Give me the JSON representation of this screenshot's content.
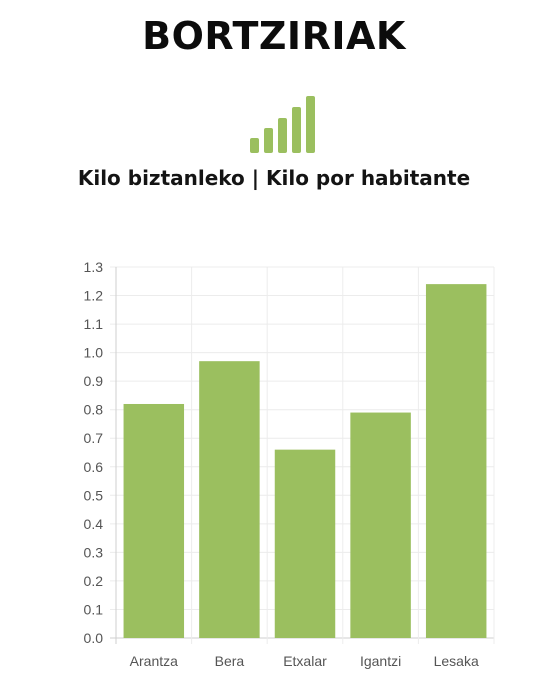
{
  "header": {
    "title": "BORTZIRIAK",
    "subtitle": "Kilo biztanleko | Kilo por habitante",
    "icon": "signal-bars-icon"
  },
  "chart_data": {
    "type": "bar",
    "categories": [
      "Arantza",
      "Bera",
      "Etxalar",
      "Igantzi",
      "Lesaka"
    ],
    "values": [
      0.82,
      0.97,
      0.66,
      0.79,
      1.24
    ],
    "ylim": [
      0,
      1.3
    ],
    "yticks": [
      "0.0",
      "0.1",
      "0.2",
      "0.3",
      "0.4",
      "0.5",
      "0.6",
      "0.7",
      "0.8",
      "0.9",
      "1.0",
      "1.1",
      "1.2",
      "1.3"
    ],
    "xlabel": "",
    "ylabel": "",
    "grid": true,
    "color": "#9bbf5f"
  }
}
